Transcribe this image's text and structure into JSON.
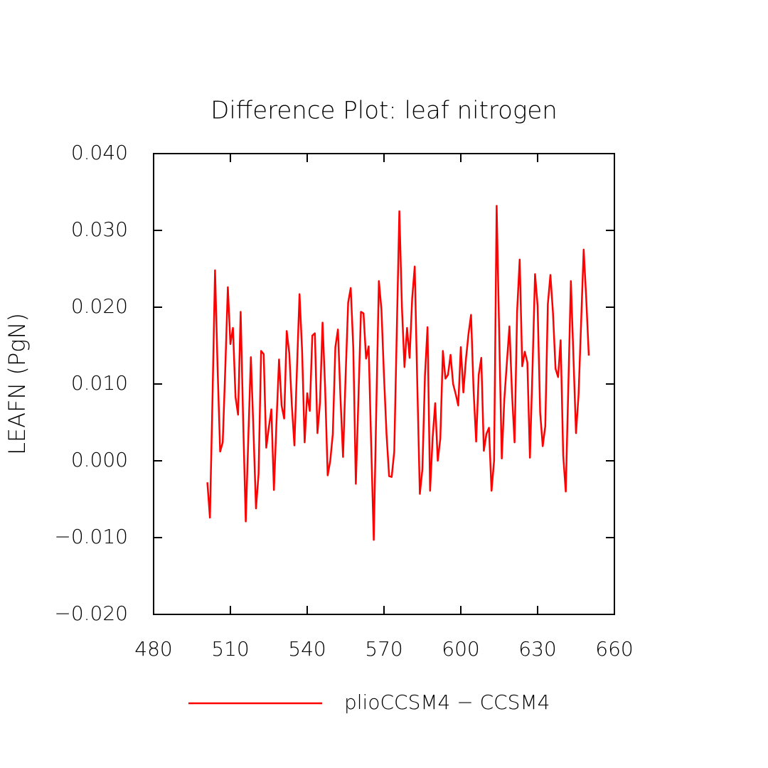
{
  "chart_data": {
    "type": "line",
    "title": "Difference Plot: leaf nitrogen",
    "y_label": "LEAFN  (PgN)",
    "x": [
      501,
      502,
      503,
      504,
      505,
      506,
      507,
      508,
      509,
      510,
      511,
      512,
      513,
      514,
      515,
      516,
      517,
      518,
      519,
      520,
      521,
      522,
      523,
      524,
      525,
      526,
      527,
      528,
      529,
      530,
      531,
      532,
      533,
      534,
      535,
      536,
      537,
      538,
      539,
      540,
      541,
      542,
      543,
      544,
      545,
      546,
      547,
      548,
      549,
      550,
      551,
      552,
      553,
      554,
      555,
      556,
      557,
      558,
      559,
      560,
      561,
      562,
      563,
      564,
      565,
      566,
      567,
      568,
      569,
      570,
      571,
      572,
      573,
      574,
      575,
      576,
      577,
      578,
      579,
      580,
      581,
      582,
      583,
      584,
      585,
      586,
      587,
      588,
      589,
      590,
      591,
      592,
      593,
      594,
      595,
      596,
      597,
      598,
      599,
      600,
      601,
      602,
      603,
      604,
      605,
      606,
      607,
      608,
      609,
      610,
      611,
      612,
      613,
      614,
      615,
      616,
      617,
      618,
      619,
      620,
      621,
      622,
      623,
      624,
      625,
      626,
      627,
      628,
      629,
      630,
      631,
      632,
      633,
      634,
      635,
      636,
      637,
      638,
      639,
      640,
      641,
      642,
      643,
      644,
      645,
      646,
      647,
      648,
      649,
      650
    ],
    "series": [
      {
        "name": "plioCCSM4 − CCSM4",
        "color": "#ff0000",
        "values": [
          -0.0028,
          -0.0074,
          0.008,
          0.0248,
          0.012,
          0.0012,
          0.0024,
          0.012,
          0.0226,
          0.0152,
          0.0173,
          0.0083,
          0.006,
          0.0194,
          0.005,
          -0.0079,
          0.003,
          0.0135,
          0.004,
          -0.0062,
          -0.0017,
          0.0143,
          0.0139,
          0.0017,
          0.0043,
          0.0067,
          -0.0038,
          0.005,
          0.0132,
          0.0072,
          0.0055,
          0.0169,
          0.014,
          0.0072,
          0.002,
          0.012,
          0.0217,
          0.0144,
          0.0024,
          0.0088,
          0.0065,
          0.0163,
          0.0166,
          0.0036,
          0.0076,
          0.018,
          0.0095,
          -0.0019,
          0,
          0.0035,
          0.0148,
          0.0171,
          0.0082,
          0.0005,
          0.011,
          0.0206,
          0.0225,
          0.0147,
          -0.003,
          0.008,
          0.0194,
          0.0192,
          0.0133,
          0.0149,
          0.002,
          -0.0103,
          0.007,
          0.0234,
          0.0197,
          0.011,
          0.0034,
          -0.002,
          -0.0021,
          0.0012,
          0.017,
          0.0325,
          0.02,
          0.0122,
          0.0173,
          0.0134,
          0.0211,
          0.0253,
          0.01,
          -0.0043,
          -0.0011,
          0.0111,
          0.0174,
          -0.0039,
          0.003,
          0.0075,
          0,
          0.0029,
          0.0143,
          0.0107,
          0.0112,
          0.0138,
          0.01,
          0.0087,
          0.0072,
          0.0148,
          0.0089,
          0.0132,
          0.0165,
          0.019,
          0.0091,
          0.0025,
          0.0112,
          0.0134,
          0.0013,
          0.0035,
          0.0043,
          -0.0039,
          0,
          0.0332,
          0.0165,
          0.0003,
          0.008,
          0.0128,
          0.0175,
          0.0088,
          0.0024,
          0.0195,
          0.0262,
          0.0123,
          0.0142,
          0.0128,
          0.0004,
          0.0119,
          0.0243,
          0.0202,
          0.0063,
          0.0019,
          0.0045,
          0.0204,
          0.0242,
          0.0193,
          0.012,
          0.0109,
          0.0157,
          0.0007,
          -0.004,
          0.0096,
          0.0234,
          0.0135,
          0.0036,
          0.0086,
          0.018,
          0.0275,
          0.0211,
          0.0137
        ]
      }
    ],
    "xlim": [
      480,
      660
    ],
    "xticks": [
      480,
      510,
      540,
      570,
      600,
      630,
      660
    ],
    "ylim": [
      -0.02,
      0.04
    ],
    "yticks": [
      {
        "value": -0.02,
        "label": "−0.020"
      },
      {
        "value": -0.01,
        "label": "−0.010"
      },
      {
        "value": 0,
        "label": "0.000"
      },
      {
        "value": 0.01,
        "label": "0.010"
      },
      {
        "value": 0.02,
        "label": "0.020"
      },
      {
        "value": 0.03,
        "label": "0.030"
      },
      {
        "value": 0.04,
        "label": "0.040"
      }
    ],
    "grid": false,
    "legend": "bottom"
  }
}
